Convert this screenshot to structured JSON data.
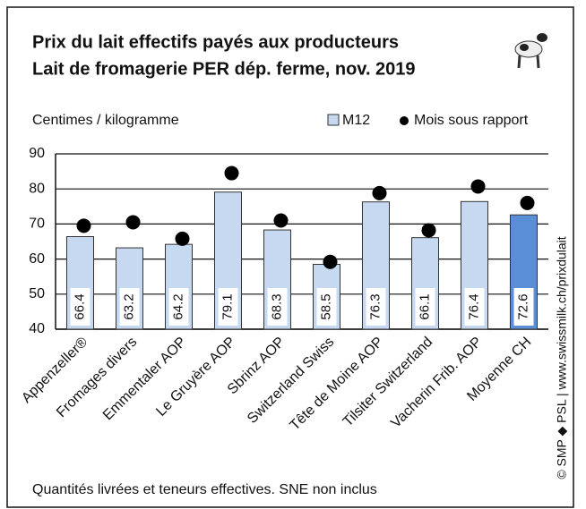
{
  "chart_data": {
    "type": "bar",
    "title": "Prix du lait effectifs payés aux producteurs",
    "subtitle": "Lait de fromagerie PER dép. ferme, nov. 2019",
    "y_axis_label": "Centimes / kilogramme",
    "footnote": "Quantités livrées et teneurs effectives. SNE non inclus",
    "source": "© SMP ◆ PSL | www.swissmilk.ch/prixdulait",
    "categories": [
      "Appenzeller®",
      "Fromages divers",
      "Emmentaler AOP",
      "Le Gruyère AOP",
      "Sbrinz AOP",
      "Switzerland Swiss",
      "Tête de Moine AOP",
      "Tilsiter Switzerland",
      "Vacherin Frib. AOP",
      "Moyenne CH"
    ],
    "series": [
      {
        "name": "M12",
        "color": "#c6d9f1",
        "highlight_color": "#5a8fd8",
        "values": [
          66.4,
          63.2,
          64.2,
          79.1,
          68.3,
          58.5,
          76.3,
          66.1,
          76.4,
          72.6
        ]
      },
      {
        "name": "Mois sous rapport",
        "color": "#000000",
        "values": [
          69.5,
          70.5,
          65.8,
          84.5,
          71.0,
          59.2,
          78.8,
          68.2,
          80.7,
          76.0
        ]
      }
    ],
    "ylim": [
      40,
      90
    ],
    "yticks": [
      40,
      50,
      60,
      70,
      80,
      90
    ],
    "grid": true
  }
}
